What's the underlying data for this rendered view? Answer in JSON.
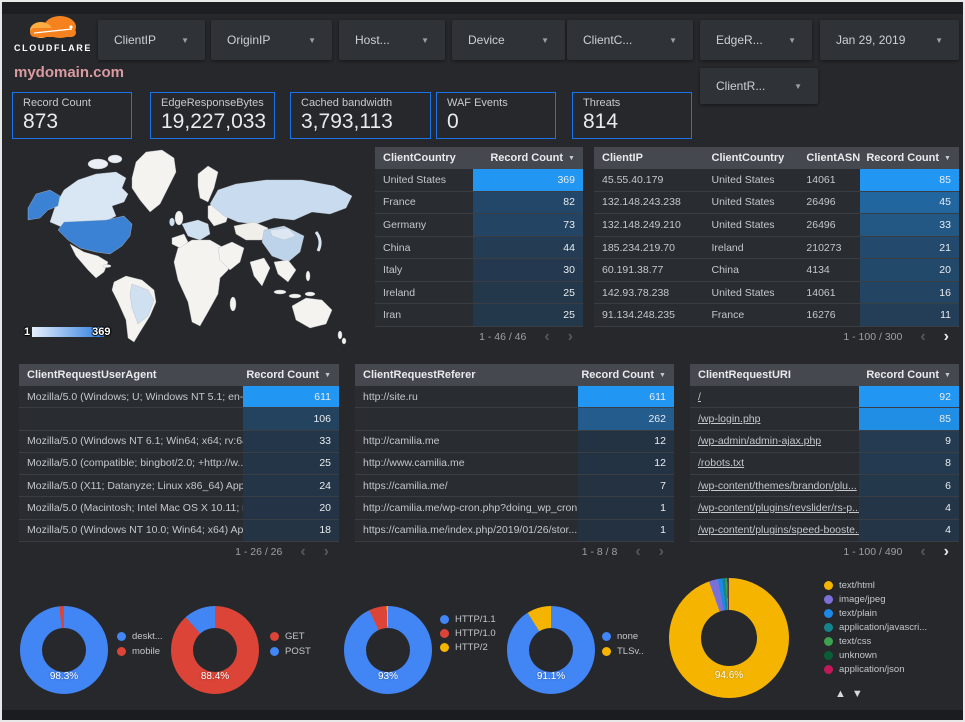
{
  "topbar": {
    "brand": "CLOUDFLARE",
    "filters": [
      {
        "label": "ClientIP"
      },
      {
        "label": "OriginIP"
      },
      {
        "label": "Host..."
      },
      {
        "label": "Device"
      },
      {
        "label": "ClientC..."
      },
      {
        "label": "EdgeR..."
      }
    ],
    "date_filter": {
      "label": "Jan 29, 2019"
    },
    "secondary_filter": {
      "label": "ClientR..."
    }
  },
  "page_title": "mydomain.com",
  "scorecards": [
    {
      "label": "Record Count",
      "value": "873"
    },
    {
      "label": "EdgeResponseBytes",
      "value": "19,227,033"
    },
    {
      "label": "Cached bandwidth",
      "value": "3,793,113"
    },
    {
      "label": "WAF Events",
      "value": "0"
    },
    {
      "label": "Threats",
      "value": "814"
    }
  ],
  "map": {
    "legend_min": "1",
    "legend_max": "369"
  },
  "tables": [
    {
      "id": "client-country",
      "columns": [
        "ClientCountry",
        "Record Count"
      ],
      "bar_col": 1,
      "max": 369,
      "rows": [
        [
          "United States",
          "369"
        ],
        [
          "France",
          "82"
        ],
        [
          "Germany",
          "73"
        ],
        [
          "China",
          "44"
        ],
        [
          "Italy",
          "30"
        ],
        [
          "Ireland",
          "25"
        ],
        [
          "Iran",
          "25"
        ]
      ],
      "pagination": "1 - 46 / 46",
      "has_prev": false,
      "has_next": false
    },
    {
      "id": "client-ip",
      "columns": [
        "ClientIP",
        "ClientCountry",
        "ClientASN",
        "Record Count"
      ],
      "bar_col": 3,
      "max": 85,
      "rows": [
        [
          "45.55.40.179",
          "United States",
          "14061",
          "85"
        ],
        [
          "132.148.243.238",
          "United States",
          "26496",
          "45"
        ],
        [
          "132.148.249.210",
          "United States",
          "26496",
          "33"
        ],
        [
          "185.234.219.70",
          "Ireland",
          "210273",
          "21"
        ],
        [
          "60.191.38.77",
          "China",
          "4134",
          "20"
        ],
        [
          "142.93.78.238",
          "United States",
          "14061",
          "16"
        ],
        [
          "91.134.248.235",
          "France",
          "16276",
          "11"
        ]
      ],
      "pagination": "1 - 100 / 300",
      "has_prev": false,
      "has_next": true
    },
    {
      "id": "user-agent",
      "columns": [
        "ClientRequestUserAgent",
        "Record Count"
      ],
      "bar_col": 1,
      "max": 611,
      "rows": [
        [
          "Mozilla/5.0 (Windows; U; Windows NT 5.1; en-U...",
          "611"
        ],
        [
          "",
          "106"
        ],
        [
          "Mozilla/5.0 (Windows NT 6.1; Win64; x64; rv:64...",
          "33"
        ],
        [
          "Mozilla/5.0 (compatible; bingbot/2.0; +http://w...",
          "25"
        ],
        [
          "Mozilla/5.0 (X11; Datanyze; Linux x86_64) Appl...",
          "24"
        ],
        [
          "Mozilla/5.0 (Macintosh; Intel Mac OS X 10.11; r...",
          "20"
        ],
        [
          "Mozilla/5.0 (Windows NT 10.0; Win64; x64) App...",
          "18"
        ]
      ],
      "pagination": "1 - 26 / 26",
      "has_prev": false,
      "has_next": false
    },
    {
      "id": "referer",
      "columns": [
        "ClientRequestReferer",
        "Record Count"
      ],
      "bar_col": 1,
      "max": 611,
      "rows": [
        [
          "http://site.ru",
          "611"
        ],
        [
          "",
          "262"
        ],
        [
          "http://camilia.me",
          "12"
        ],
        [
          "http://www.camilia.me",
          "12"
        ],
        [
          "https://camilia.me/",
          "7"
        ],
        [
          "http://camilia.me/wp-cron.php?doing_wp_cron...",
          "1"
        ],
        [
          "https://camilia.me/index.php/2019/01/26/stor...",
          "1"
        ]
      ],
      "pagination": "1 - 8 / 8",
      "has_prev": false,
      "has_next": false
    },
    {
      "id": "uri",
      "columns": [
        "ClientRequestURI",
        "Record Count"
      ],
      "bar_col": 1,
      "max": 92,
      "link_col": 0,
      "rows": [
        [
          "/",
          "92"
        ],
        [
          "/wp-login.php",
          "85"
        ],
        [
          "/wp-admin/admin-ajax.php",
          "9"
        ],
        [
          "/robots.txt",
          "8"
        ],
        [
          "/wp-content/themes/brandon/plu...",
          "6"
        ],
        [
          "/wp-content/plugins/revslider/rs-p...",
          "4"
        ],
        [
          "/wp-content/plugins/speed-booste...",
          "4"
        ]
      ],
      "pagination": "1 - 100 / 490",
      "has_prev": false,
      "has_next": true
    }
  ],
  "chart_data": [
    {
      "type": "pie",
      "id": "device",
      "percent_label": "98.3%",
      "slices": [
        {
          "label": "deskt...",
          "pct": 98.3,
          "color": "#4285f4"
        },
        {
          "label": "mobile",
          "pct": 1.7,
          "color": "#db4437"
        }
      ]
    },
    {
      "type": "pie",
      "id": "http-method",
      "percent_label": "88.4%",
      "slices": [
        {
          "label": "GET",
          "pct": 88.4,
          "color": "#db4437"
        },
        {
          "label": "POST",
          "pct": 11.6,
          "color": "#4285f4"
        }
      ]
    },
    {
      "type": "pie",
      "id": "http-version",
      "percent_label": "93%",
      "slices": [
        {
          "label": "HTTP/1.1",
          "pct": 93,
          "color": "#4285f4"
        },
        {
          "label": "HTTP/1.0",
          "pct": 6.5,
          "color": "#db4437"
        },
        {
          "label": "HTTP/2",
          "pct": 0.5,
          "color": "#f4b400"
        }
      ]
    },
    {
      "type": "pie",
      "id": "tls-version",
      "percent_label": "91.1%",
      "slices": [
        {
          "label": "none",
          "pct": 91.1,
          "color": "#4285f4"
        },
        {
          "label": "TLSv..",
          "pct": 8.9,
          "color": "#f4b400"
        }
      ]
    },
    {
      "type": "pie",
      "id": "content-type",
      "percent_label": "94.6%",
      "slices": [
        {
          "label": "text/html",
          "pct": 94.6,
          "color": "#f4b400"
        },
        {
          "label": "image/jpeg",
          "pct": 2.4,
          "color": "#7b6fd8"
        },
        {
          "label": "text/plain",
          "pct": 1.2,
          "color": "#1e88e5"
        },
        {
          "label": "application/javascri...",
          "pct": 0.8,
          "color": "#15838d"
        },
        {
          "label": "text/css",
          "pct": 0.5,
          "color": "#3da04c"
        },
        {
          "label": "unknown",
          "pct": 0.3,
          "color": "#0b5d37"
        },
        {
          "label": "application/json",
          "pct": 0.2,
          "color": "#c2185b"
        }
      ]
    }
  ],
  "colors": {
    "accent": "#2196f3",
    "heat_base": "#243140",
    "card_border": "#1a73e8"
  }
}
